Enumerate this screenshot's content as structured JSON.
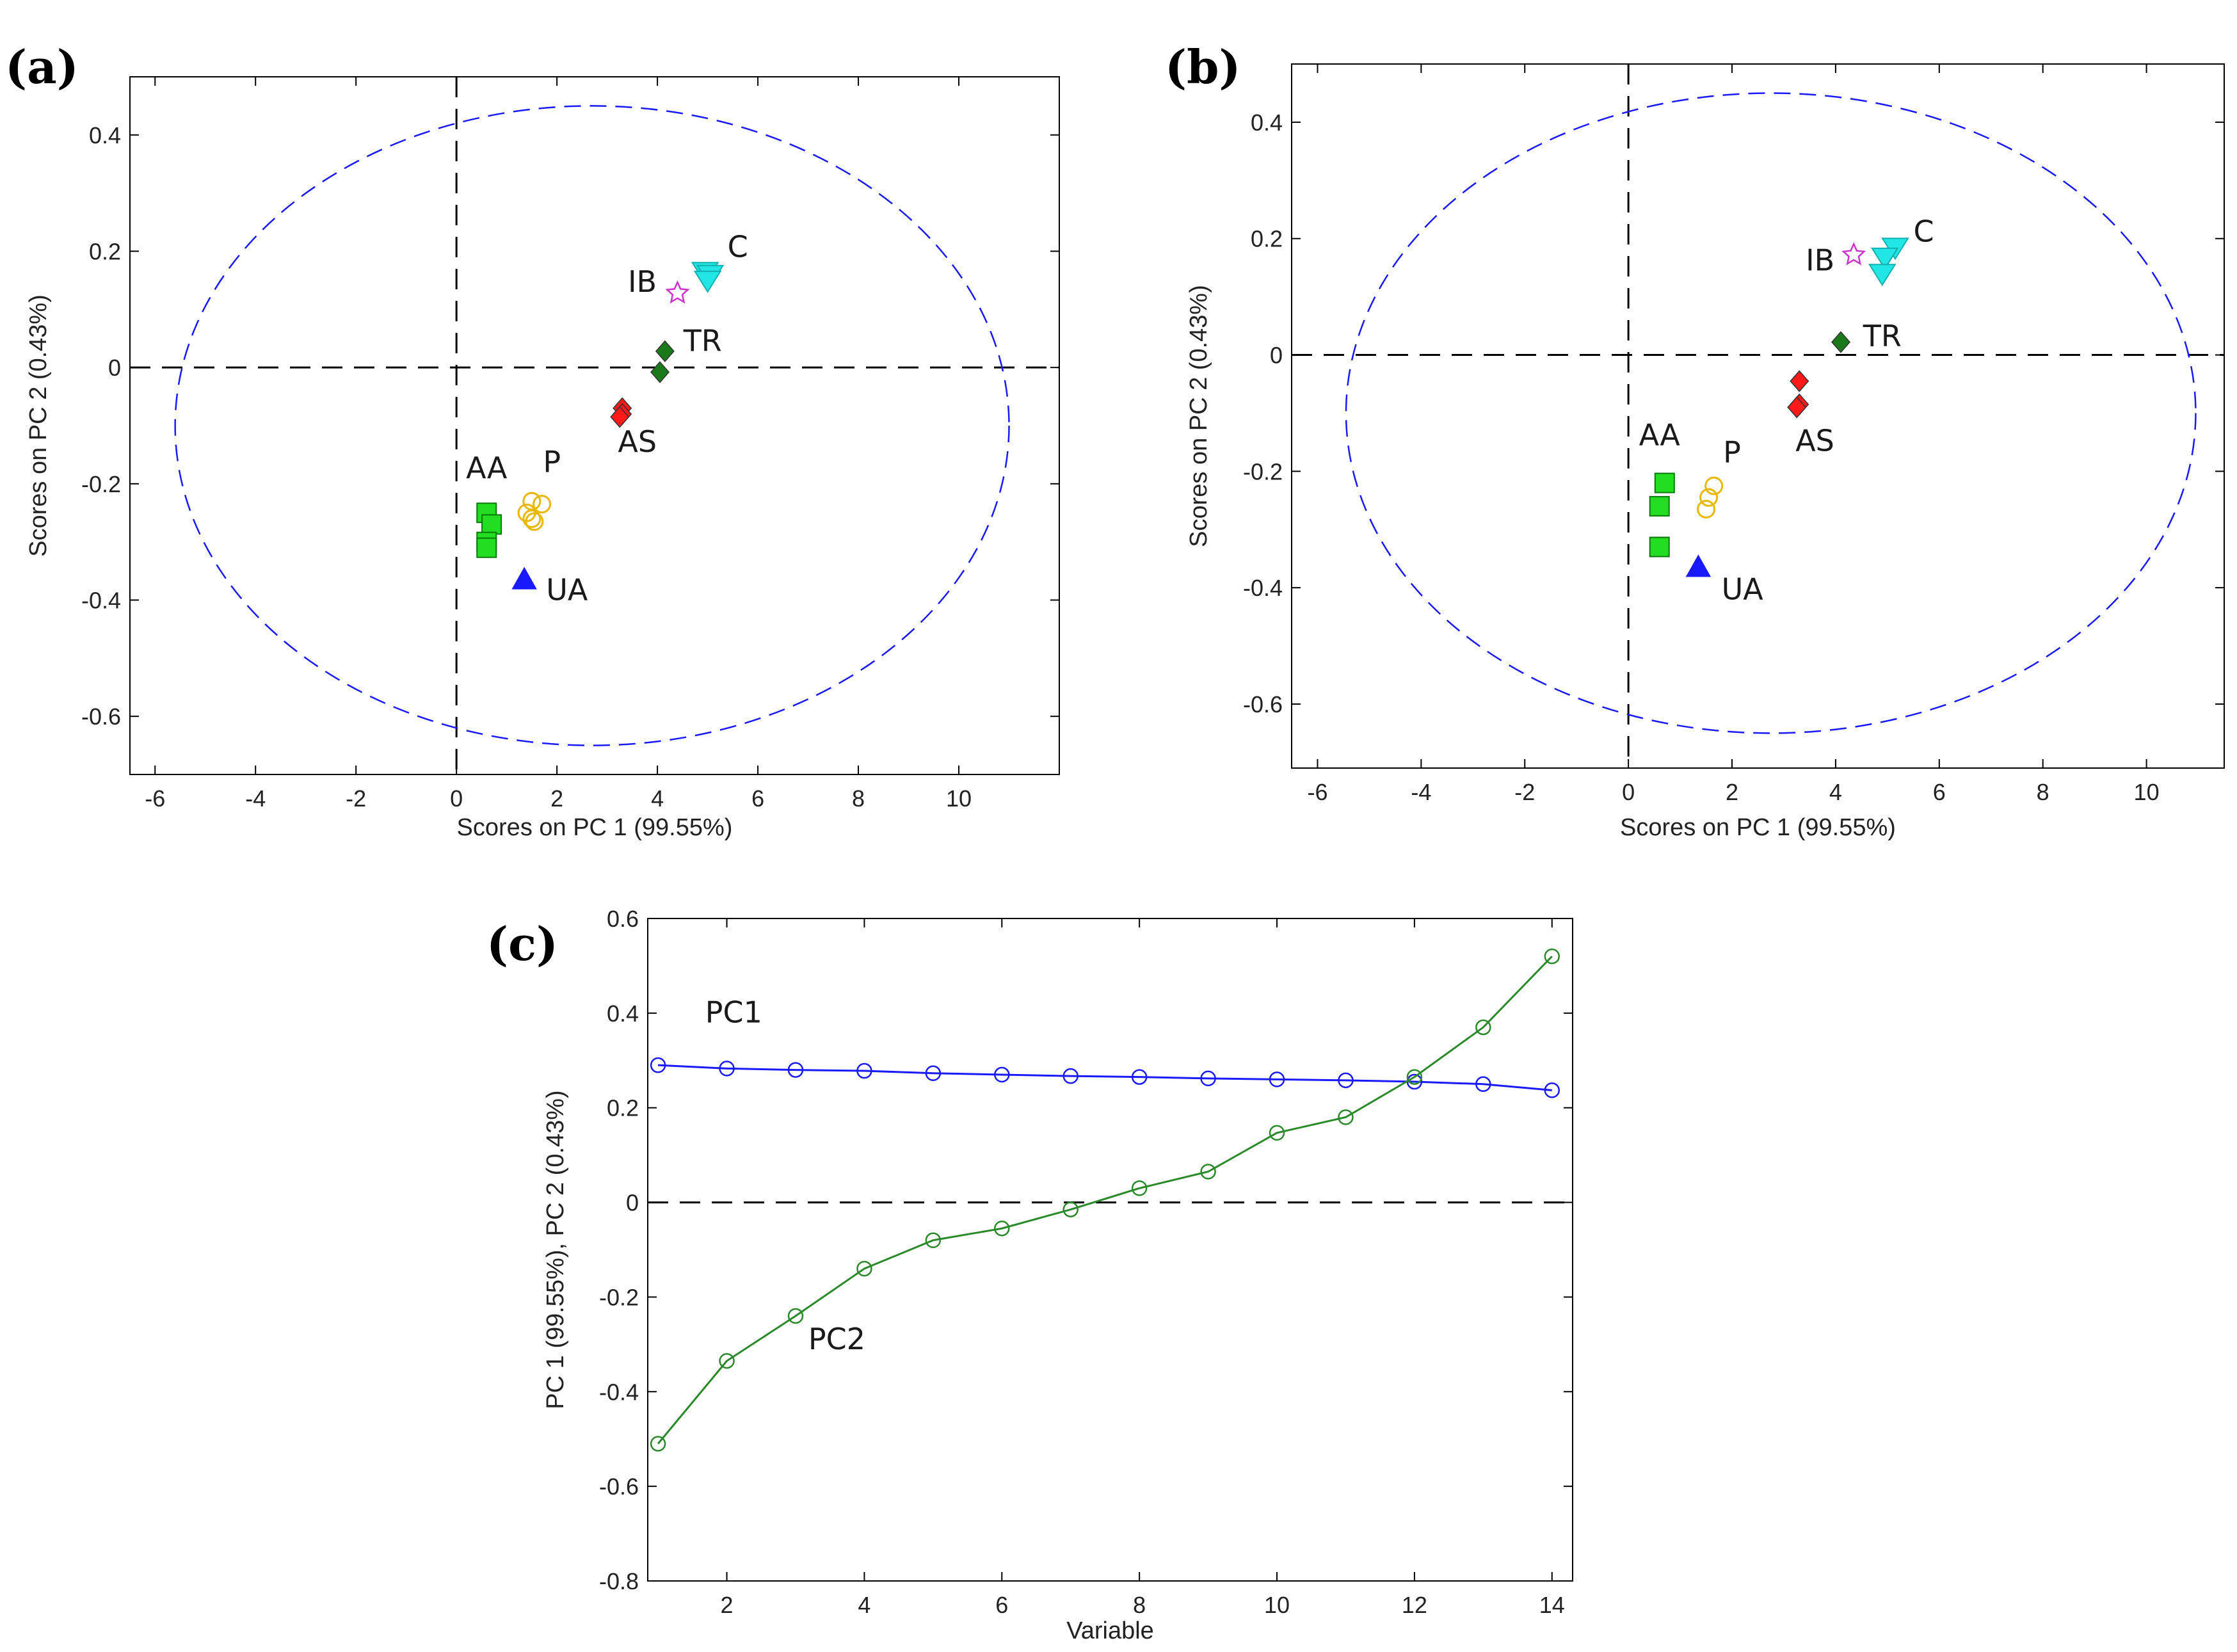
{
  "chart_data": [
    {
      "id": "a",
      "type": "scatter",
      "panel_label": "(a)",
      "xlabel": "Scores on PC 1 (99.55%)",
      "ylabel": "Scores on PC 2 (0.43%)",
      "xlim": [
        -6.5,
        12
      ],
      "ylim": [
        -0.7,
        0.5
      ],
      "xticks": [
        -6,
        -4,
        -2,
        0,
        2,
        4,
        6,
        8,
        10
      ],
      "yticks": [
        -0.6,
        -0.4,
        -0.2,
        0,
        0.2,
        0.4
      ],
      "xticklabels": [
        "-6",
        "-4",
        "-2",
        "0",
        "2",
        "4",
        "6",
        "8",
        "10"
      ],
      "yticklabels": [
        "-0.6",
        "-0.4",
        "-0.2",
        "0",
        "0.2",
        "0.4"
      ],
      "ellipse": {
        "cx": 2.7,
        "cy": -0.1,
        "rx": 8.3,
        "ry": 0.55,
        "color": "#1a1aff"
      },
      "groups": [
        {
          "name": "AA",
          "marker": "square",
          "color": "#22dd22",
          "points": [
            [
              0.6,
              -0.25
            ],
            [
              0.7,
              -0.27
            ],
            [
              0.6,
              -0.3
            ],
            [
              0.6,
              -0.31
            ]
          ],
          "label": [
            0.6,
            -0.19
          ]
        },
        {
          "name": "P",
          "marker": "circle-open",
          "color": "#e8b800",
          "points": [
            [
              1.5,
              -0.23
            ],
            [
              1.7,
              -0.235
            ],
            [
              1.4,
              -0.25
            ],
            [
              1.55,
              -0.265
            ],
            [
              1.5,
              -0.26
            ]
          ],
          "label": [
            1.9,
            -0.18
          ]
        },
        {
          "name": "UA",
          "marker": "triangle-up",
          "color": "#1a1aff",
          "points": [
            [
              1.35,
              -0.365
            ]
          ],
          "label": [
            2.2,
            -0.4
          ]
        },
        {
          "name": "AS",
          "marker": "diamond",
          "color": "#ff1a1a",
          "points": [
            [
              3.3,
              -0.07
            ],
            [
              3.3,
              -0.08
            ],
            [
              3.25,
              -0.085
            ]
          ],
          "label": [
            3.6,
            -0.145
          ]
        },
        {
          "name": "TR",
          "marker": "diamond",
          "color": "#1a7a1a",
          "points": [
            [
              4.15,
              0.028
            ],
            [
              4.05,
              -0.008
            ]
          ],
          "label": [
            4.9,
            0.028
          ]
        },
        {
          "name": "IB",
          "marker": "star-open",
          "color": "#cc33cc",
          "points": [
            [
              4.4,
              0.128
            ]
          ],
          "label": [
            3.7,
            0.13
          ]
        },
        {
          "name": "C",
          "marker": "triangle-down",
          "color": "#22e6e6",
          "points": [
            [
              4.95,
              0.165
            ],
            [
              5.05,
              0.16
            ],
            [
              5.0,
              0.15
            ]
          ],
          "label": [
            5.6,
            0.19
          ]
        }
      ]
    },
    {
      "id": "b",
      "type": "scatter",
      "panel_label": "(b)",
      "xlabel": "Scores on PC 1 (99.55%)",
      "ylabel": "Scores on PC 2 (0.43%)",
      "xlim": [
        -6.5,
        11.5
      ],
      "ylim": [
        -0.71,
        0.5
      ],
      "xticks": [
        -6,
        -4,
        -2,
        0,
        2,
        4,
        6,
        8,
        10
      ],
      "yticks": [
        -0.6,
        -0.4,
        -0.2,
        0,
        0.2,
        0.4
      ],
      "xticklabels": [
        "-6",
        "-4",
        "-2",
        "0",
        "2",
        "4",
        "6",
        "8",
        "10"
      ],
      "yticklabels": [
        "-0.6",
        "-0.4",
        "-0.2",
        "0",
        "0.2",
        "0.4"
      ],
      "ellipse": {
        "cx": 2.75,
        "cy": -0.1,
        "rx": 8.2,
        "ry": 0.55,
        "color": "#1a1aff"
      },
      "groups": [
        {
          "name": "AA",
          "marker": "square",
          "color": "#22dd22",
          "points": [
            [
              0.7,
              -0.22
            ],
            [
              0.6,
              -0.26
            ],
            [
              0.6,
              -0.33
            ]
          ],
          "label": [
            0.6,
            -0.155
          ]
        },
        {
          "name": "P",
          "marker": "circle-open",
          "color": "#e8b800",
          "points": [
            [
              1.65,
              -0.225
            ],
            [
              1.55,
              -0.245
            ],
            [
              1.5,
              -0.265
            ]
          ],
          "label": [
            2.0,
            -0.185
          ]
        },
        {
          "name": "UA",
          "marker": "triangle-up",
          "color": "#1a1aff",
          "points": [
            [
              1.35,
              -0.365
            ]
          ],
          "label": [
            2.2,
            -0.42
          ]
        },
        {
          "name": "AS",
          "marker": "diamond",
          "color": "#ff1a1a",
          "points": [
            [
              3.3,
              -0.045
            ],
            [
              3.3,
              -0.085
            ],
            [
              3.25,
              -0.09
            ]
          ],
          "label": [
            3.6,
            -0.165
          ]
        },
        {
          "name": "TR",
          "marker": "diamond",
          "color": "#1a7a1a",
          "points": [
            [
              4.1,
              0.022
            ]
          ],
          "label": [
            4.9,
            0.015
          ]
        },
        {
          "name": "IB",
          "marker": "star-open",
          "color": "#cc33cc",
          "points": [
            [
              4.35,
              0.172
            ]
          ],
          "label": [
            3.7,
            0.145
          ]
        },
        {
          "name": "C",
          "marker": "triangle-down",
          "color": "#22e6e6",
          "points": [
            [
              5.15,
              0.185
            ],
            [
              4.95,
              0.168
            ],
            [
              4.9,
              0.14
            ]
          ],
          "label": [
            5.7,
            0.195
          ]
        }
      ]
    },
    {
      "id": "c",
      "type": "line",
      "panel_label": "(c)",
      "xlabel": "Variable",
      "ylabel": "PC 1 (99.55%), PC 2 (0.43%)",
      "xlim": [
        0.85,
        14.3
      ],
      "ylim": [
        -0.8,
        0.6
      ],
      "xticks": [
        2,
        4,
        6,
        8,
        10,
        12,
        14
      ],
      "yticks": [
        -0.8,
        -0.6,
        -0.4,
        -0.2,
        0,
        0.2,
        0.4,
        0.6
      ],
      "xticklabels": [
        "2",
        "4",
        "6",
        "8",
        "10",
        "12",
        "14"
      ],
      "yticklabels": [
        "-0.8",
        "-0.6",
        "-0.4",
        "-0.2",
        "0",
        "0.2",
        "0.4",
        "0.6"
      ],
      "x": [
        1,
        2,
        3,
        4,
        5,
        6,
        7,
        8,
        9,
        10,
        11,
        12,
        13,
        14
      ],
      "series": [
        {
          "name": "PC1",
          "color": "#1a1aff",
          "values": [
            0.29,
            0.283,
            0.28,
            0.278,
            0.273,
            0.27,
            0.267,
            0.265,
            0.262,
            0.26,
            0.258,
            0.255,
            0.25,
            0.237
          ],
          "label": [
            2.1,
            0.38
          ]
        },
        {
          "name": "PC2",
          "color": "#2a8a2a",
          "values": [
            -0.51,
            -0.335,
            -0.24,
            -0.14,
            -0.08,
            -0.055,
            -0.015,
            0.03,
            0.065,
            0.147,
            0.18,
            0.265,
            0.37,
            0.52
          ],
          "label": [
            3.6,
            -0.31
          ]
        }
      ]
    }
  ]
}
